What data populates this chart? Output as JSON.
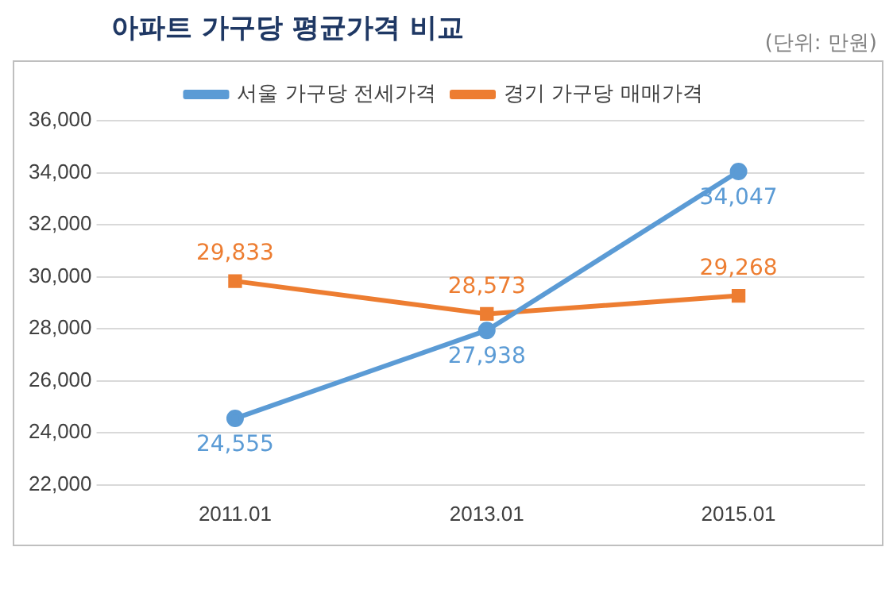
{
  "chart_data": {
    "type": "line",
    "title": "아파트 가구당 평균가격 비교",
    "subtitle": "(단위: 만원)",
    "categories": [
      "2011.01",
      "2013.01",
      "2015.01"
    ],
    "series": [
      {
        "name": "서울 가구당 전세가격",
        "color": "#5b9bd5",
        "marker": "circle",
        "values": [
          24555,
          27938,
          34047
        ],
        "value_labels": [
          "24,555",
          "27,938",
          "34,047"
        ]
      },
      {
        "name": "경기 가구당 매매가격",
        "color": "#ed7d31",
        "marker": "square",
        "values": [
          29833,
          28573,
          29268
        ],
        "value_labels": [
          "29,833",
          "28,573",
          "29,268"
        ]
      }
    ],
    "ylim": [
      22000,
      36000
    ],
    "yticks": [
      {
        "value": 22000,
        "label": "22,000"
      },
      {
        "value": 24000,
        "label": "24,000"
      },
      {
        "value": 26000,
        "label": "26,000"
      },
      {
        "value": 28000,
        "label": "28,000"
      },
      {
        "value": 30000,
        "label": "30,000"
      },
      {
        "value": 32000,
        "label": "32,000"
      },
      {
        "value": 34000,
        "label": "34,000"
      },
      {
        "value": 36000,
        "label": "36,000"
      }
    ],
    "grid": "y",
    "legend": "top",
    "line_style": "solid"
  }
}
